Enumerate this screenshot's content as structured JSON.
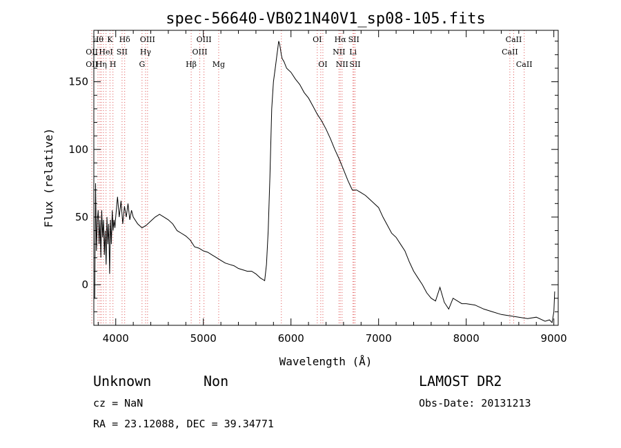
{
  "chart_data": {
    "type": "line",
    "title": "spec-56640-VB021N40V1_sp08-105.fits",
    "xlabel": "Wavelength (Å)",
    "ylabel": "Flux (relative)",
    "xlim": [
      3750,
      9050
    ],
    "ylim": [
      -30,
      188
    ],
    "xticks": [
      4000,
      5000,
      6000,
      7000,
      8000,
      9000
    ],
    "yticks": [
      0,
      50,
      100,
      150
    ],
    "grid": false,
    "series": [
      {
        "x": [
          3760,
          3770,
          3780,
          3790,
          3800,
          3810,
          3820,
          3830,
          3840,
          3850,
          3860,
          3870,
          3880,
          3890,
          3900,
          3910,
          3920,
          3930,
          3940,
          3950,
          3960,
          3970,
          3980,
          3990,
          4000,
          4020,
          4040,
          4060,
          4080,
          4100,
          4120,
          4140,
          4160,
          4180,
          4200,
          4250,
          4300,
          4350,
          4400,
          4450,
          4500,
          4550,
          4600,
          4650,
          4700,
          4750,
          4800,
          4850,
          4900,
          4950,
          5000,
          5050,
          5100,
          5150,
          5200,
          5250,
          5300,
          5350,
          5400,
          5450,
          5500,
          5550,
          5600,
          5650,
          5700,
          5720,
          5740,
          5760,
          5780,
          5800,
          5820,
          5840,
          5850,
          5860,
          5870,
          5880,
          5890,
          5900,
          5920,
          5950,
          6000,
          6050,
          6100,
          6150,
          6200,
          6250,
          6300,
          6350,
          6400,
          6450,
          6500,
          6550,
          6600,
          6650,
          6700,
          6750,
          6800,
          6850,
          6900,
          6950,
          7000,
          7050,
          7100,
          7150,
          7200,
          7250,
          7300,
          7350,
          7400,
          7450,
          7500,
          7550,
          7600,
          7650,
          7700,
          7750,
          7800,
          7850,
          7900,
          7950,
          8000,
          8100,
          8200,
          8300,
          8400,
          8500,
          8600,
          8700,
          8800,
          8900,
          8950,
          8980,
          9000,
          9010
        ],
        "values": [
          -10,
          75,
          25,
          48,
          55,
          30,
          48,
          20,
          55,
          35,
          48,
          22,
          40,
          15,
          50,
          30,
          45,
          8,
          48,
          30,
          55,
          40,
          48,
          42,
          50,
          65,
          50,
          62,
          45,
          58,
          50,
          60,
          48,
          55,
          50,
          45,
          42,
          44,
          47,
          50,
          52,
          50,
          48,
          45,
          40,
          38,
          36,
          33,
          28,
          27,
          25,
          24,
          22,
          20,
          18,
          16,
          15,
          14,
          12,
          11,
          10,
          10,
          8,
          5,
          3,
          15,
          40,
          80,
          130,
          150,
          160,
          170,
          175,
          180,
          178,
          174,
          170,
          167,
          165,
          160,
          157,
          152,
          148,
          142,
          138,
          132,
          126,
          121,
          115,
          108,
          100,
          93,
          85,
          77,
          70,
          70,
          68,
          66,
          63,
          60,
          57,
          50,
          44,
          38,
          35,
          30,
          25,
          17,
          10,
          5,
          0,
          -6,
          -10,
          -12,
          -2,
          -13,
          -18,
          -10,
          -12,
          -14,
          -14,
          -15,
          -18,
          -20,
          -22,
          -23,
          -24,
          -25,
          -24,
          -27,
          -26,
          -28,
          -20,
          -5
        ]
      }
    ],
    "line_labels": [
      {
        "label": "Hθ",
        "wavelength": 3797,
        "row": 0
      },
      {
        "label": "K",
        "wavelength": 3934,
        "row": 0
      },
      {
        "label": "Hδ",
        "wavelength": 4102,
        "row": 0
      },
      {
        "label": "OIII",
        "wavelength": 4363,
        "row": 0
      },
      {
        "label": "OIII",
        "wavelength": 5007,
        "row": 0
      },
      {
        "label": "OI",
        "wavelength": 6300,
        "row": 0
      },
      {
        "label": "Hα",
        "wavelength": 6563,
        "row": 0
      },
      {
        "label": "SII",
        "wavelength": 6717,
        "row": 0
      },
      {
        "label": "CaII",
        "wavelength": 8542,
        "row": 0
      },
      {
        "label": "OII",
        "wavelength": 3727,
        "row": 1
      },
      {
        "label": "HeI",
        "wavelength": 3889,
        "row": 1
      },
      {
        "label": "SII",
        "wavelength": 4072,
        "row": 1
      },
      {
        "label": "Hγ",
        "wavelength": 4340,
        "row": 1
      },
      {
        "label": "OIII",
        "wavelength": 4959,
        "row": 1
      },
      {
        "label": "NII",
        "wavelength": 6548,
        "row": 1
      },
      {
        "label": "Li",
        "wavelength": 6708,
        "row": 1
      },
      {
        "label": "CaII",
        "wavelength": 8498,
        "row": 1
      },
      {
        "label": "OII",
        "wavelength": 3727,
        "row": 2
      },
      {
        "label": "Hη",
        "wavelength": 3835,
        "row": 2
      },
      {
        "label": "H",
        "wavelength": 3968,
        "row": 2
      },
      {
        "label": "G",
        "wavelength": 4300,
        "row": 2
      },
      {
        "label": "Hβ",
        "wavelength": 4861,
        "row": 2
      },
      {
        "label": "Mg",
        "wavelength": 5175,
        "row": 2
      },
      {
        "label": "OI",
        "wavelength": 6364,
        "row": 2
      },
      {
        "label": "NII",
        "wavelength": 6583,
        "row": 2
      },
      {
        "label": "SII",
        "wavelength": 6731,
        "row": 2
      },
      {
        "label": "CaII",
        "wavelength": 8662,
        "row": 2
      }
    ],
    "extra_marker_lines": [
      3820,
      3860,
      5890,
      6340
    ]
  },
  "info": {
    "class_label": "Unknown",
    "subclass_label": "Non",
    "survey_label": "LAMOST DR2",
    "cz_text": "cz = NaN",
    "obs_date_text": "Obs-Date: 20131213",
    "coords_text": "RA =  23.12088, DEC =  39.34771"
  },
  "colors": {
    "spectrum": "#000000",
    "line_markers": "#e05050",
    "axes": "#000000",
    "background": "#ffffff"
  }
}
